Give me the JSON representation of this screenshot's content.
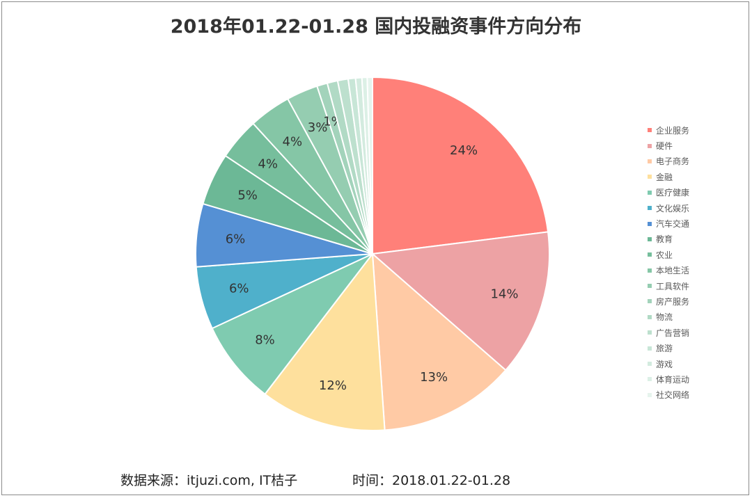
{
  "chart_data": {
    "type": "pie",
    "title": "2018年01.22-01.28 国内投融资事件方向分布",
    "legend_position": "right",
    "slices": [
      {
        "name": "企业服务",
        "value": 24,
        "label": "24%",
        "color": "#ff8079"
      },
      {
        "name": "硬件",
        "value": 14,
        "label": "14%",
        "color": "#eda2a4"
      },
      {
        "name": "电子商务",
        "value": 13,
        "label": "13%",
        "color": "#ffcaa5"
      },
      {
        "name": "金融",
        "value": 12,
        "label": "12%",
        "color": "#fee09d"
      },
      {
        "name": "医疗健康",
        "value": 8,
        "label": "8%",
        "color": "#7fcbb0"
      },
      {
        "name": "文化娱乐",
        "value": 6,
        "label": "6%",
        "color": "#4fb0cb"
      },
      {
        "name": "汽车交通",
        "value": 6,
        "label": "6%",
        "color": "#5590d4"
      },
      {
        "name": "教育",
        "value": 5,
        "label": "5%",
        "color": "#6cb896"
      },
      {
        "name": "农业",
        "value": 4,
        "label": "4%",
        "color": "#76be9c"
      },
      {
        "name": "本地生活",
        "value": 4,
        "label": "4%",
        "color": "#85c6a6"
      },
      {
        "name": "工具软件",
        "value": 3,
        "label": "3%",
        "color": "#95cdb1"
      },
      {
        "name": "房产服务",
        "value": 1,
        "label": "1%",
        "color": "#a3d3bb"
      },
      {
        "name": "物流",
        "value": 1,
        "label": "",
        "color": "#b1dac5"
      },
      {
        "name": "广告营销",
        "value": 1,
        "label": "",
        "color": "#bde0ce"
      },
      {
        "name": "旅游",
        "value": 0.7,
        "label": "",
        "color": "#c8e6d7"
      },
      {
        "name": "游戏",
        "value": 0.6,
        "label": "",
        "color": "#d3ebdf"
      },
      {
        "name": "体育运动",
        "value": 0.5,
        "label": "",
        "color": "#dcf0e6"
      },
      {
        "name": "社交网络",
        "value": 0.5,
        "label": "",
        "color": "#e6f4ed"
      }
    ]
  },
  "footer": {
    "source": "数据来源：itjuzi.com, IT桔子",
    "time": "时间：2018.01.22-01.28"
  }
}
